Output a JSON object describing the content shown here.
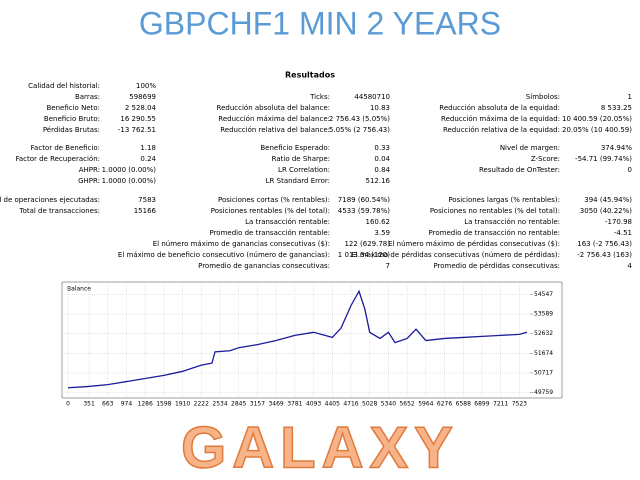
{
  "header": {
    "title": "GBPCHF1 MIN 2 YEARS"
  },
  "report": {
    "title": "Resultados",
    "sections": [
      {
        "left": [
          [
            "Calidad del historial:",
            "100%"
          ],
          [
            "Barras:",
            "598699"
          ],
          [
            "Beneficio Neto:",
            "2 528.04"
          ],
          [
            "Beneficio Bruto:",
            "16 290.55"
          ],
          [
            "Pérdidas Brutas:",
            "-13 762.51"
          ]
        ],
        "middle": [
          [
            "Ticks:",
            "44580710"
          ],
          [
            "Reducción absoluta del balance:",
            "10.83"
          ],
          [
            "Reducción máxima del balance:",
            "2 756.43 (5.05%)"
          ],
          [
            "Reducción relativa del balance:",
            "5.05% (2 756.43)"
          ]
        ],
        "right": [
          [
            "Símbolos:",
            "1"
          ],
          [
            "Reducción absoluta de la equidad:",
            "8 533.25"
          ],
          [
            "Reducción máxima de la equidad:",
            "10 400.59 (20.05%)"
          ],
          [
            "Reducción relativa de la equidad:",
            "20.05% (10 400.59)"
          ]
        ]
      },
      {
        "left": [
          [
            "Factor de Beneficio:",
            "1.18"
          ],
          [
            "Factor de Recuperación:",
            "0.24"
          ],
          [
            "AHPR:",
            "1.0000 (0.00%)"
          ],
          [
            "GHPR:",
            "1.0000 (0.00%)"
          ]
        ],
        "middle": [
          [
            "Beneficio Esperado:",
            "0.33"
          ],
          [
            "Ratio de Sharpe:",
            "0.04"
          ],
          [
            "LR Correlation:",
            "0.84"
          ],
          [
            "LR Standard Error:",
            "512.16"
          ]
        ],
        "right": [
          [
            "Nivel de margen:",
            "374.94%"
          ],
          [
            "Z-Score:",
            "-54.71 (99.74%)"
          ],
          [
            "Resultado de OnTester:",
            "0"
          ]
        ]
      },
      {
        "left": [
          [
            "Total de operaciones ejecutadas:",
            "7583"
          ],
          [
            "Total de transacciones:",
            "15166"
          ]
        ],
        "middle": [
          [
            "Posiciones cortas (% rentables):",
            "7189 (60.54%)"
          ],
          [
            "Posiciones rentables (% del total):",
            "4533 (59.78%)"
          ],
          [
            "La transacción rentable:",
            "160.62"
          ],
          [
            "Promedio de transacción rentable:",
            "3.59"
          ],
          [
            "El número máximo de ganancias consecutivas ($):",
            "122 (629.78)"
          ],
          [
            "El máximo de beneficio consecutivo (número de ganancias):",
            "1 013.34 (120)"
          ],
          [
            "Promedio de ganancias consecutivas:",
            "7"
          ]
        ],
        "right": [
          [
            "Posiciones largas (% rentables):",
            "394 (45.94%)"
          ],
          [
            "Posiciones no rentables (% del total):",
            "3050 (40.22%)"
          ],
          [
            "La transacción no rentable:",
            "-170.98"
          ],
          [
            "Promedio de transacción no rentable:",
            "-4.51"
          ],
          [
            "El número máximo de pérdidas consecutivas ($):",
            "163 (-2 756.43)"
          ],
          [
            "El máximo de pérdidas consecutivas (número de pérdidas):",
            "-2 756.43 (163)"
          ],
          [
            "Promedio de pérdidas consecutivas:",
            "4"
          ]
        ]
      }
    ]
  },
  "chart_data": {
    "type": "line",
    "title": "Balance",
    "x": [
      0,
      300,
      663,
      974,
      1286,
      1598,
      1910,
      2222,
      2400,
      2450,
      2700,
      2845,
      3157,
      3469,
      3781,
      4093,
      4405,
      4550,
      4716,
      4850,
      4950,
      5028,
      5200,
      5340,
      5450,
      5652,
      5800,
      5964,
      6276,
      6588,
      6899,
      7211,
      7523,
      7650
    ],
    "series": [
      {
        "color": "#1a1a9c",
        "values": [
          50000,
          50050,
          50150,
          50300,
          50450,
          50600,
          50800,
          51100,
          51200,
          51750,
          51800,
          51950,
          52100,
          52300,
          52550,
          52700,
          52450,
          52900,
          54000,
          54700,
          53800,
          52700,
          52400,
          52700,
          52200,
          52400,
          52850,
          52300,
          52400,
          52450,
          52500,
          52550,
          52600,
          52700
        ]
      }
    ],
    "xlim": [
      -100,
      7700
    ],
    "ylim": [
      49500,
      55150
    ],
    "xticks": [
      0,
      351,
      663,
      974,
      1286,
      1598,
      1910,
      2222,
      2534,
      2845,
      3157,
      3469,
      3781,
      4093,
      4405,
      4716,
      5028,
      5340,
      5652,
      5964,
      6276,
      6588,
      6899,
      7211,
      7523
    ],
    "yticks": [
      49759,
      50717,
      51674,
      52632,
      53589,
      54547
    ],
    "grid": true
  },
  "footer": {
    "brand": "GALAXY"
  }
}
